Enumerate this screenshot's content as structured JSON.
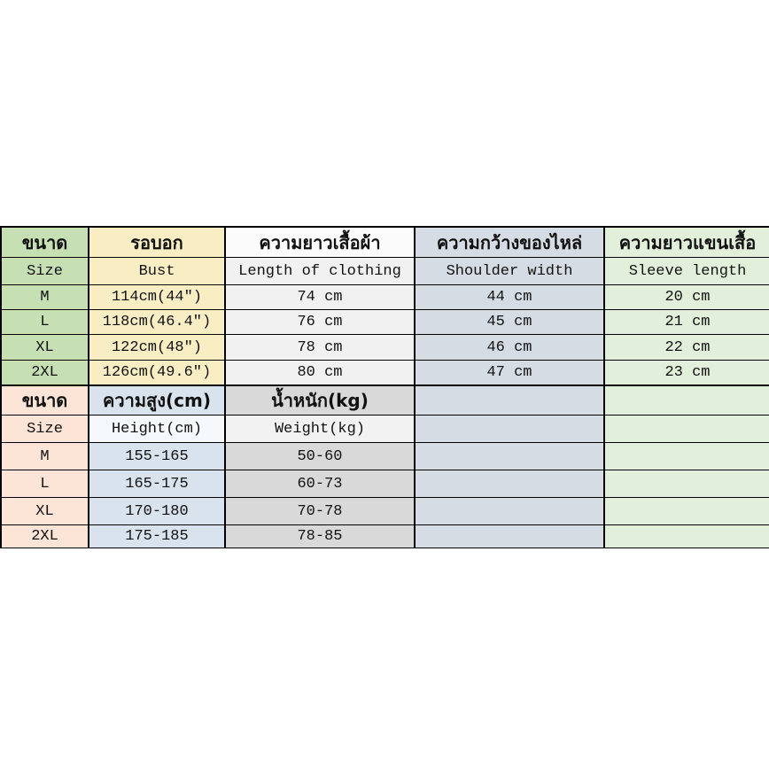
{
  "colors": {
    "upper_size_col": "#c6e0b4",
    "upper_bust_col": "#f9eec3",
    "upper_length_col": "#f1f1f1",
    "shoulder_col": "#d6dce4",
    "sleeve_col": "#e2efda",
    "lower_size_col": "#fce4d6",
    "lower_height_col": "#d9e3ee",
    "lower_weight_col": "#d9d9d9",
    "border": "#000000",
    "page_background": "#ffffff"
  },
  "chart_data": [
    {
      "type": "table",
      "columns_th": [
        "ขนาด",
        "รอบอก",
        "ความยาวเสื้อผ้า",
        "ความกว้างของไหล่",
        "ความยาวแขนเสื้อ"
      ],
      "columns_en": [
        "Size",
        "Bust",
        "Length of clothing",
        "Shoulder width",
        "Sleeve length"
      ],
      "rows": [
        [
          "M",
          "114cm(44″)",
          "74 cm",
          "44 cm",
          "20 cm"
        ],
        [
          "L",
          "118cm(46.4″)",
          "76 cm",
          "45 cm",
          "21 cm"
        ],
        [
          "XL",
          "122cm(48″)",
          "78 cm",
          "46 cm",
          "22 cm"
        ],
        [
          "2XL",
          "126cm(49.6″)",
          "80 cm",
          "47 cm",
          "23 cm"
        ]
      ]
    },
    {
      "type": "table",
      "columns_th": [
        "ขนาด",
        "ความสูง(cm)",
        "น้ำหนัก(kg)"
      ],
      "columns_en": [
        "Size",
        "Height(cm)",
        "Weight(kg)"
      ],
      "rows": [
        [
          "M",
          "155-165",
          "50-60"
        ],
        [
          "L",
          "165-175",
          "60-73"
        ],
        [
          "XL",
          "170-180",
          "70-78"
        ],
        [
          "2XL",
          "175-185",
          "78-85"
        ]
      ]
    }
  ]
}
